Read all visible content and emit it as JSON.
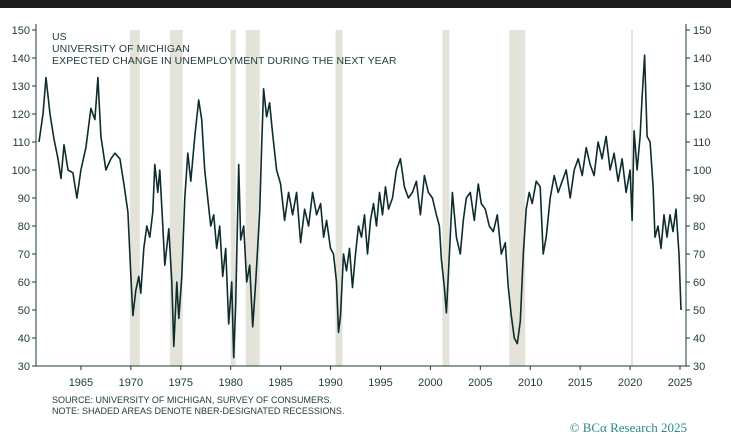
{
  "title_lines": [
    "US",
    "UNIVERSITY OF MICHIGAN",
    "EXPECTED CHANGE IN UNEMPLOYMENT DURING THE NEXT YEAR"
  ],
  "footnotes": [
    "SOURCE: UNIVERSITY OF MICHIGAN, SURVEY OF CONSUMERS.",
    "NOTE: SHADED AREAS DENOTE NBER-DESIGNATED RECESSIONS."
  ],
  "brand": {
    "text": "© BCA Research 2025",
    "symbol": "©",
    "name_a": "BC",
    "name_alpha": "α",
    "name_rest": "Research 2025"
  },
  "colors": {
    "line": "#0f2c2c",
    "axis": "#1e3a3a",
    "recession": "#e3e3da",
    "brand": "#2a8a86",
    "topbar": "#1d1d1d"
  },
  "chart_data": {
    "type": "line",
    "xlim": [
      1960.5,
      2025.6
    ],
    "ylim": [
      30,
      150
    ],
    "x_ticks": [
      "1965",
      "1970",
      "1975",
      "1980",
      "1985",
      "1990",
      "1995",
      "2000",
      "2005",
      "2010",
      "2015",
      "2020",
      "2025"
    ],
    "y_ticks": [
      "150",
      "140",
      "130",
      "120",
      "110",
      "100",
      "90",
      "80",
      "70",
      "60",
      "50",
      "40",
      "30"
    ],
    "y_axis_sides": "left and right",
    "grid": false,
    "recessions": [
      [
        1969.9,
        1970.9
      ],
      [
        1973.9,
        1975.2
      ],
      [
        1980.0,
        1980.5
      ],
      [
        1981.5,
        1982.9
      ],
      [
        1990.5,
        1991.2
      ],
      [
        2001.2,
        2001.9
      ],
      [
        2007.9,
        2009.5
      ],
      [
        2020.1,
        2020.3
      ]
    ],
    "series": [
      {
        "values": [
          [
            1960.8,
            110
          ],
          [
            1961.2,
            120
          ],
          [
            1961.5,
            133
          ],
          [
            1961.9,
            120
          ],
          [
            1962.3,
            111
          ],
          [
            1962.7,
            104
          ],
          [
            1963.0,
            97
          ],
          [
            1963.3,
            109
          ],
          [
            1963.7,
            100
          ],
          [
            1964.2,
            99
          ],
          [
            1964.6,
            90
          ],
          [
            1965.0,
            100
          ],
          [
            1965.5,
            108
          ],
          [
            1966.0,
            122
          ],
          [
            1966.4,
            118
          ],
          [
            1966.7,
            133
          ],
          [
            1967.0,
            112
          ],
          [
            1967.5,
            100
          ],
          [
            1968.0,
            104
          ],
          [
            1968.4,
            106
          ],
          [
            1968.9,
            104
          ],
          [
            1969.3,
            95
          ],
          [
            1969.7,
            85
          ],
          [
            1970.0,
            62
          ],
          [
            1970.2,
            48
          ],
          [
            1970.5,
            57
          ],
          [
            1970.8,
            62
          ],
          [
            1971.0,
            56
          ],
          [
            1971.3,
            72
          ],
          [
            1971.6,
            80
          ],
          [
            1971.9,
            76
          ],
          [
            1972.2,
            85
          ],
          [
            1972.4,
            102
          ],
          [
            1972.7,
            92
          ],
          [
            1972.9,
            100
          ],
          [
            1973.2,
            80
          ],
          [
            1973.4,
            66
          ],
          [
            1973.8,
            79
          ],
          [
            1974.1,
            60
          ],
          [
            1974.3,
            37
          ],
          [
            1974.6,
            60
          ],
          [
            1974.8,
            47
          ],
          [
            1975.1,
            62
          ],
          [
            1975.4,
            90
          ],
          [
            1975.7,
            106
          ],
          [
            1976.0,
            96
          ],
          [
            1976.4,
            112
          ],
          [
            1976.8,
            125
          ],
          [
            1977.1,
            118
          ],
          [
            1977.4,
            100
          ],
          [
            1977.7,
            90
          ],
          [
            1978.0,
            80
          ],
          [
            1978.3,
            84
          ],
          [
            1978.6,
            72
          ],
          [
            1978.9,
            80
          ],
          [
            1979.2,
            62
          ],
          [
            1979.5,
            72
          ],
          [
            1979.8,
            45
          ],
          [
            1980.1,
            60
          ],
          [
            1980.3,
            33
          ],
          [
            1980.5,
            52
          ],
          [
            1980.8,
            102
          ],
          [
            1981.0,
            75
          ],
          [
            1981.3,
            80
          ],
          [
            1981.6,
            60
          ],
          [
            1981.9,
            66
          ],
          [
            1982.2,
            44
          ],
          [
            1982.5,
            60
          ],
          [
            1982.9,
            85
          ],
          [
            1983.1,
            109
          ],
          [
            1983.3,
            129
          ],
          [
            1983.6,
            119
          ],
          [
            1983.9,
            124
          ],
          [
            1984.2,
            113
          ],
          [
            1984.6,
            100
          ],
          [
            1985.0,
            95
          ],
          [
            1985.4,
            82
          ],
          [
            1985.8,
            92
          ],
          [
            1986.2,
            84
          ],
          [
            1986.6,
            92
          ],
          [
            1987.0,
            74
          ],
          [
            1987.4,
            86
          ],
          [
            1987.8,
            80
          ],
          [
            1988.2,
            92
          ],
          [
            1988.6,
            84
          ],
          [
            1989.0,
            88
          ],
          [
            1989.3,
            76
          ],
          [
            1989.6,
            82
          ],
          [
            1990.0,
            72
          ],
          [
            1990.3,
            70
          ],
          [
            1990.6,
            60
          ],
          [
            1990.8,
            42
          ],
          [
            1991.0,
            48
          ],
          [
            1991.3,
            70
          ],
          [
            1991.6,
            64
          ],
          [
            1991.9,
            72
          ],
          [
            1992.2,
            58
          ],
          [
            1992.5,
            70
          ],
          [
            1992.8,
            80
          ],
          [
            1993.1,
            76
          ],
          [
            1993.4,
            84
          ],
          [
            1993.7,
            70
          ],
          [
            1994.0,
            82
          ],
          [
            1994.3,
            88
          ],
          [
            1994.6,
            80
          ],
          [
            1994.9,
            92
          ],
          [
            1995.2,
            84
          ],
          [
            1995.5,
            94
          ],
          [
            1995.8,
            86
          ],
          [
            1996.2,
            90
          ],
          [
            1996.6,
            100
          ],
          [
            1997.0,
            104
          ],
          [
            1997.4,
            94
          ],
          [
            1997.8,
            90
          ],
          [
            1998.2,
            92
          ],
          [
            1998.6,
            96
          ],
          [
            1999.0,
            84
          ],
          [
            1999.4,
            98
          ],
          [
            1999.8,
            92
          ],
          [
            2000.2,
            90
          ],
          [
            2000.6,
            84
          ],
          [
            2000.9,
            80
          ],
          [
            2001.1,
            68
          ],
          [
            2001.4,
            58
          ],
          [
            2001.6,
            49
          ],
          [
            2001.9,
            70
          ],
          [
            2002.2,
            92
          ],
          [
            2002.6,
            76
          ],
          [
            2003.0,
            70
          ],
          [
            2003.3,
            82
          ],
          [
            2003.6,
            90
          ],
          [
            2004.0,
            92
          ],
          [
            2004.4,
            82
          ],
          [
            2004.8,
            95
          ],
          [
            2005.1,
            88
          ],
          [
            2005.5,
            86
          ],
          [
            2005.9,
            80
          ],
          [
            2006.3,
            78
          ],
          [
            2006.7,
            84
          ],
          [
            2007.1,
            70
          ],
          [
            2007.5,
            74
          ],
          [
            2007.8,
            58
          ],
          [
            2008.1,
            48
          ],
          [
            2008.4,
            40
          ],
          [
            2008.7,
            38
          ],
          [
            2009.0,
            46
          ],
          [
            2009.3,
            70
          ],
          [
            2009.6,
            86
          ],
          [
            2009.9,
            92
          ],
          [
            2010.2,
            88
          ],
          [
            2010.6,
            96
          ],
          [
            2011.0,
            94
          ],
          [
            2011.3,
            70
          ],
          [
            2011.6,
            76
          ],
          [
            2012.0,
            90
          ],
          [
            2012.4,
            98
          ],
          [
            2012.8,
            92
          ],
          [
            2013.2,
            96
          ],
          [
            2013.6,
            100
          ],
          [
            2014.0,
            90
          ],
          [
            2014.4,
            100
          ],
          [
            2014.8,
            104
          ],
          [
            2015.2,
            98
          ],
          [
            2015.6,
            108
          ],
          [
            2016.0,
            102
          ],
          [
            2016.4,
            98
          ],
          [
            2016.8,
            110
          ],
          [
            2017.2,
            104
          ],
          [
            2017.6,
            112
          ],
          [
            2018.0,
            100
          ],
          [
            2018.4,
            106
          ],
          [
            2018.8,
            96
          ],
          [
            2019.2,
            104
          ],
          [
            2019.6,
            92
          ],
          [
            2020.0,
            100
          ],
          [
            2020.2,
            82
          ],
          [
            2020.4,
            114
          ],
          [
            2020.7,
            100
          ],
          [
            2021.0,
            112
          ],
          [
            2021.2,
            126
          ],
          [
            2021.45,
            141
          ],
          [
            2021.7,
            112
          ],
          [
            2022.0,
            110
          ],
          [
            2022.3,
            94
          ],
          [
            2022.5,
            76
          ],
          [
            2022.8,
            80
          ],
          [
            2023.1,
            72
          ],
          [
            2023.4,
            84
          ],
          [
            2023.7,
            76
          ],
          [
            2024.0,
            84
          ],
          [
            2024.3,
            78
          ],
          [
            2024.6,
            86
          ],
          [
            2024.9,
            70
          ],
          [
            2025.1,
            50
          ]
        ]
      }
    ]
  }
}
